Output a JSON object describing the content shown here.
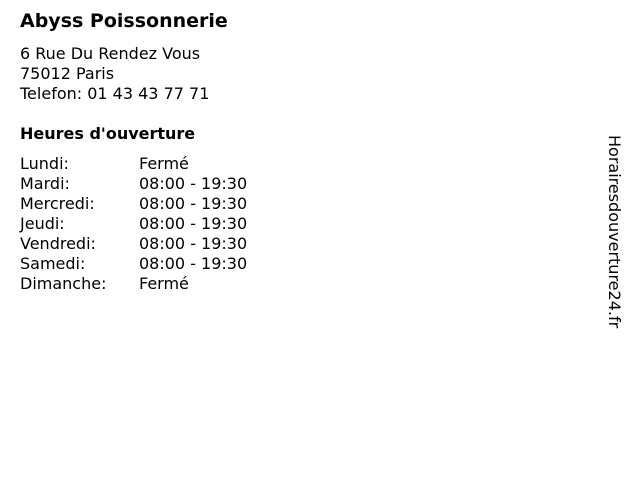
{
  "name": "Abyss Poissonnerie",
  "address": {
    "street": "6 Rue Du Rendez Vous",
    "city": "75012 Paris",
    "phone": "Telefon: 01 43 43 77 71"
  },
  "hours_title": "Heures d'ouverture",
  "hours": [
    {
      "day": "Lundi:",
      "time": "Fermé"
    },
    {
      "day": "Mardi:",
      "time": "08:00 - 19:30"
    },
    {
      "day": "Mercredi:",
      "time": "08:00 - 19:30"
    },
    {
      "day": "Jeudi:",
      "time": "08:00 - 19:30"
    },
    {
      "day": "Vendredi:",
      "time": "08:00 - 19:30"
    },
    {
      "day": "Samedi:",
      "time": "08:00 - 19:30"
    },
    {
      "day": "Dimanche:",
      "time": "Fermé"
    }
  ],
  "watermark": "Horairesdouverture24.fr"
}
